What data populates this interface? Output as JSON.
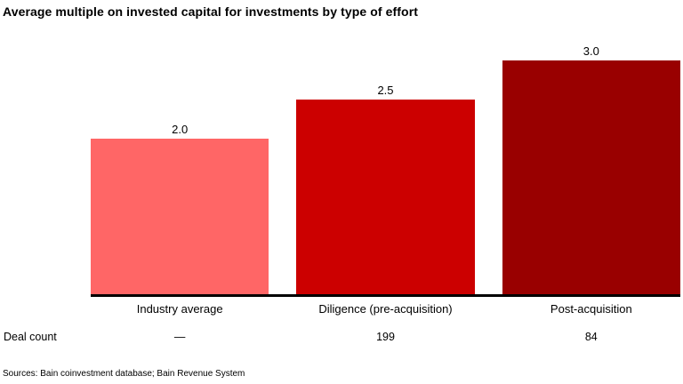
{
  "title": "Average multiple on invested capital for investments by type of effort",
  "deal_count_label": "Deal count",
  "source_note": "Sources: Bain coinvestment database; Bain Revenue System",
  "colors": {
    "axis": "#000000",
    "text": "#000000",
    "background": "#ffffff"
  },
  "chart_data": {
    "type": "bar",
    "title": "Average multiple on invested capital for investments by type of effort",
    "categories": [
      "Industry average",
      "Diligence (pre-acquisition)",
      "Post-acquisition"
    ],
    "values": [
      2.0,
      2.5,
      3.0
    ],
    "value_labels": [
      "2.0",
      "2.5",
      "3.0"
    ],
    "bar_colors": [
      "#FF6666",
      "#CC0000",
      "#990000"
    ],
    "deal_counts": [
      "—",
      "199",
      "84"
    ],
    "xlabel": "",
    "ylabel": "",
    "ylim": [
      0,
      3.0
    ],
    "grid": false,
    "legend": false,
    "annotation_row": {
      "label": "Deal count",
      "values": [
        "—",
        "199",
        "84"
      ]
    }
  }
}
